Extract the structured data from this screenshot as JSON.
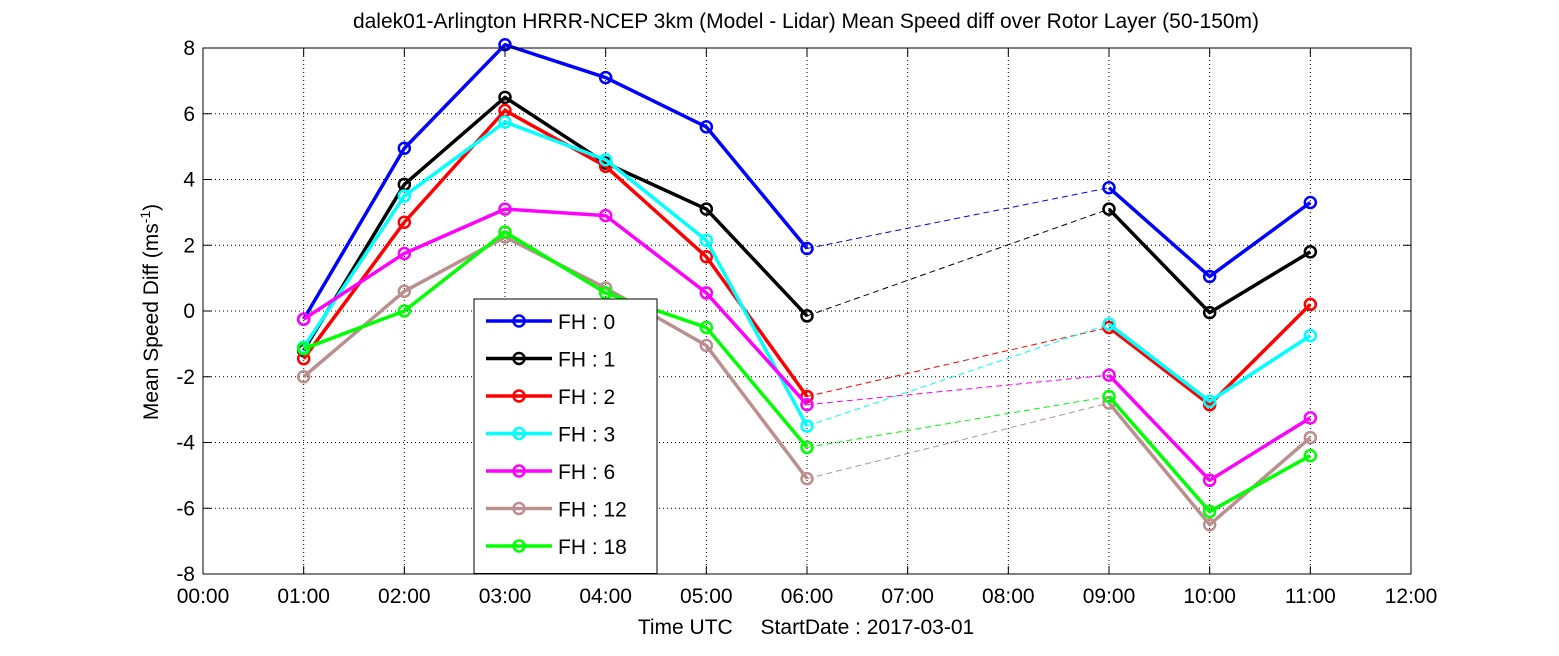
{
  "chart_data": {
    "type": "line",
    "title": "dalek01-Arlington HRRR-NCEP 3km (Model - Lidar) Mean Speed diff over Rotor Layer (50-150m)",
    "xlabel_parts": [
      "Time UTC",
      "StartDate : 2017-03-01"
    ],
    "ylabel": "Mean Speed Diff (ms",
    "ylabel_sup": "-1",
    "ylabel_close": ")",
    "xlim": [
      0,
      12
    ],
    "ylim": [
      -8,
      8
    ],
    "x_ticks": [
      0,
      1,
      2,
      3,
      4,
      5,
      6,
      7,
      8,
      9,
      10,
      11,
      12
    ],
    "x_tick_labels": [
      "00:00",
      "01:00",
      "02:00",
      "03:00",
      "04:00",
      "05:00",
      "06:00",
      "07:00",
      "08:00",
      "09:00",
      "10:00",
      "11:00",
      "12:00"
    ],
    "y_ticks": [
      -8,
      -6,
      -4,
      -2,
      0,
      2,
      4,
      6,
      8
    ],
    "y_tick_labels": [
      "-8",
      "-6",
      "-4",
      "-2",
      "0",
      "2",
      "4",
      "6",
      "8"
    ],
    "grid": true,
    "legend_position": "lower-left",
    "x": [
      1,
      2,
      3,
      4,
      5,
      6,
      9,
      10,
      11
    ],
    "gap_between": [
      6,
      9
    ],
    "series": [
      {
        "name": "FH : 0",
        "color": "#0000ff",
        "values": [
          -0.25,
          4.95,
          8.1,
          7.1,
          5.6,
          1.9,
          3.75,
          1.05,
          3.3
        ]
      },
      {
        "name": "FH : 1",
        "color": "#000000",
        "values": [
          -1.2,
          3.85,
          6.5,
          4.5,
          3.1,
          -0.15,
          3.1,
          -0.05,
          1.8
        ]
      },
      {
        "name": "FH : 2",
        "color": "#ff0000",
        "values": [
          -1.45,
          2.7,
          6.1,
          4.4,
          1.65,
          -2.6,
          -0.5,
          -2.85,
          0.2
        ]
      },
      {
        "name": "FH : 3",
        "color": "#00ffff",
        "values": [
          -1.1,
          3.5,
          5.75,
          4.6,
          2.15,
          -3.5,
          -0.4,
          -2.75,
          -0.75
        ]
      },
      {
        "name": "FH : 6",
        "color": "#ff00ff",
        "values": [
          -0.25,
          1.75,
          3.1,
          2.9,
          0.55,
          -2.85,
          -1.95,
          -5.15,
          -3.25
        ]
      },
      {
        "name": "FH : 12",
        "color": "#bc8f8f",
        "values": [
          -2.0,
          0.6,
          2.25,
          0.7,
          -1.05,
          -5.1,
          -2.8,
          -6.5,
          -3.85
        ]
      },
      {
        "name": "FH : 18",
        "color": "#00ff00",
        "values": [
          -1.15,
          0.0,
          2.4,
          0.55,
          -0.5,
          -4.15,
          -2.6,
          -6.1,
          -4.4
        ]
      }
    ]
  }
}
